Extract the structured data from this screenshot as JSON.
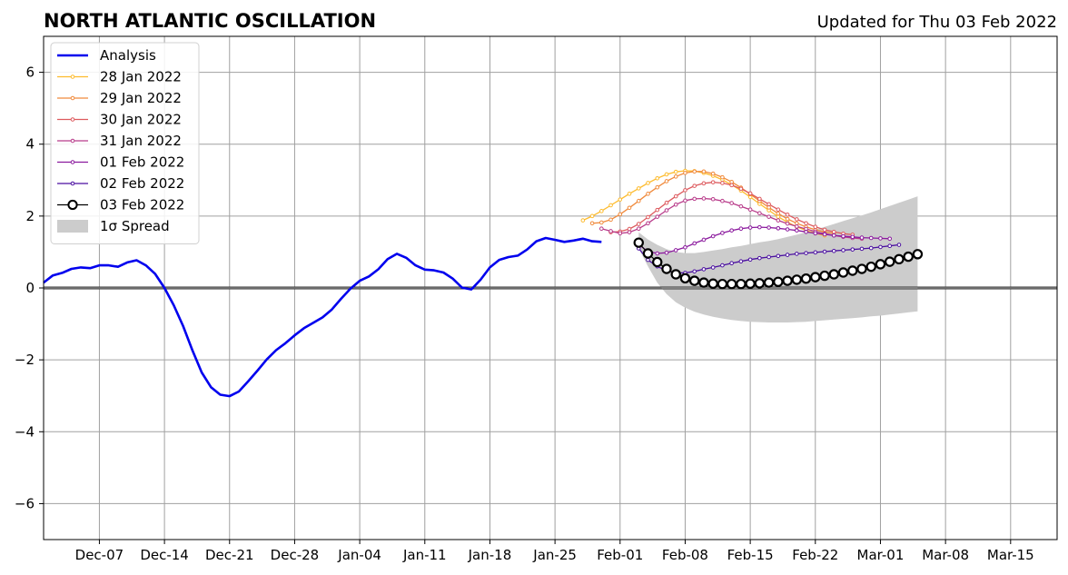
{
  "chart_data": {
    "type": "line",
    "title": "NORTH ATLANTIC OSCILLATION",
    "subtitle": "Updated for Thu 03 Feb 2022",
    "xlabel": "",
    "ylabel": "",
    "xlim": [
      "2021-12-01",
      "2022-03-20"
    ],
    "ylim": [
      -7,
      7
    ],
    "grid": true,
    "legend_position": "top-left",
    "x_ticks": [
      {
        "date": "2021-12-07",
        "label": "Dec-07"
      },
      {
        "date": "2021-12-14",
        "label": "Dec-14"
      },
      {
        "date": "2021-12-21",
        "label": "Dec-21"
      },
      {
        "date": "2021-12-28",
        "label": "Dec-28"
      },
      {
        "date": "2022-01-04",
        "label": "Jan-04"
      },
      {
        "date": "2022-01-11",
        "label": "Jan-11"
      },
      {
        "date": "2022-01-18",
        "label": "Jan-18"
      },
      {
        "date": "2022-01-25",
        "label": "Jan-25"
      },
      {
        "date": "2022-02-01",
        "label": "Feb-01"
      },
      {
        "date": "2022-02-08",
        "label": "Feb-08"
      },
      {
        "date": "2022-02-15",
        "label": "Feb-15"
      },
      {
        "date": "2022-02-22",
        "label": "Feb-22"
      },
      {
        "date": "2022-03-01",
        "label": "Mar-01"
      },
      {
        "date": "2022-03-08",
        "label": "Mar-08"
      },
      {
        "date": "2022-03-15",
        "label": "Mar-15"
      }
    ],
    "y_ticks": [
      {
        "value": 6,
        "label": "6"
      },
      {
        "value": 4,
        "label": "4"
      },
      {
        "value": 2,
        "label": "2"
      },
      {
        "value": 0,
        "label": "0"
      },
      {
        "value": -2,
        "label": "−2"
      },
      {
        "value": -4,
        "label": "−4"
      },
      {
        "value": -6,
        "label": "−6"
      }
    ],
    "legend": {
      "analysis": "Analysis",
      "spread": "1σ Spread"
    },
    "analysis": {
      "name": "Analysis",
      "color": "#0000ee",
      "start": "2021-12-01",
      "values": [
        0.15,
        0.35,
        0.42,
        0.53,
        0.57,
        0.55,
        0.63,
        0.63,
        0.59,
        0.71,
        0.77,
        0.63,
        0.39,
        0.0,
        -0.48,
        -1.06,
        -1.73,
        -2.35,
        -2.76,
        -2.97,
        -3.01,
        -2.88,
        -2.6,
        -2.3,
        -1.99,
        -1.73,
        -1.54,
        -1.32,
        -1.12,
        -0.97,
        -0.82,
        -0.6,
        -0.3,
        -0.02,
        0.2,
        0.32,
        0.52,
        0.8,
        0.95,
        0.84,
        0.63,
        0.51,
        0.49,
        0.43,
        0.26,
        0.01,
        -0.04,
        0.23,
        0.57,
        0.78,
        0.86,
        0.9,
        1.07,
        1.3,
        1.39,
        1.34,
        1.28,
        1.32,
        1.37,
        1.3,
        1.28
      ]
    },
    "spread": {
      "name": "1σ Spread",
      "color": "#cccccc",
      "dates": [
        "2022-02-03",
        "2022-02-04",
        "2022-02-05",
        "2022-02-06",
        "2022-02-07",
        "2022-02-08",
        "2022-02-09",
        "2022-02-10",
        "2022-02-11",
        "2022-02-12",
        "2022-02-13",
        "2022-02-14",
        "2022-02-15",
        "2022-02-16",
        "2022-02-17",
        "2022-02-18",
        "2022-02-19",
        "2022-02-20",
        "2022-02-21",
        "2022-02-22",
        "2022-02-23",
        "2022-02-24",
        "2022-02-25",
        "2022-02-26",
        "2022-02-27",
        "2022-02-28",
        "2022-03-01",
        "2022-03-02",
        "2022-03-03",
        "2022-03-04",
        "2022-03-05"
      ],
      "upper": [
        1.55,
        1.35,
        1.2,
        1.08,
        1.0,
        0.97,
        0.97,
        1.0,
        1.04,
        1.08,
        1.13,
        1.17,
        1.22,
        1.27,
        1.31,
        1.36,
        1.42,
        1.48,
        1.55,
        1.62,
        1.7,
        1.78,
        1.86,
        1.94,
        2.02,
        2.1,
        2.19,
        2.28,
        2.37,
        2.46,
        2.55
      ],
      "lower": [
        1.1,
        0.6,
        0.15,
        -0.17,
        -0.4,
        -0.55,
        -0.66,
        -0.74,
        -0.8,
        -0.85,
        -0.89,
        -0.92,
        -0.94,
        -0.95,
        -0.96,
        -0.96,
        -0.96,
        -0.95,
        -0.94,
        -0.92,
        -0.9,
        -0.88,
        -0.86,
        -0.84,
        -0.82,
        -0.79,
        -0.77,
        -0.74,
        -0.71,
        -0.68,
        -0.65
      ]
    },
    "series": [
      {
        "name": "28 Jan 2022",
        "color": "#fdbb2d",
        "start": "2022-01-28",
        "values": [
          1.88,
          2.0,
          2.14,
          2.3,
          2.46,
          2.62,
          2.77,
          2.92,
          3.05,
          3.16,
          3.23,
          3.26,
          3.25,
          3.2,
          3.12,
          3.01,
          2.87,
          2.71,
          2.53,
          2.34,
          2.16,
          1.98,
          1.83,
          1.7,
          1.6,
          1.52,
          1.46
        ]
      },
      {
        "name": "29 Jan 2022",
        "color": "#f08a3c",
        "start": "2022-01-29",
        "values": [
          1.8,
          1.82,
          1.9,
          2.05,
          2.23,
          2.42,
          2.62,
          2.8,
          2.97,
          3.1,
          3.2,
          3.24,
          3.24,
          3.18,
          3.08,
          2.95,
          2.79,
          2.61,
          2.42,
          2.24,
          2.07,
          1.92,
          1.8,
          1.7,
          1.62,
          1.56,
          1.52
        ]
      },
      {
        "name": "30 Jan 2022",
        "color": "#dd5a5e",
        "start": "2022-01-31",
        "values": [
          1.55,
          1.57,
          1.64,
          1.78,
          1.97,
          2.17,
          2.37,
          2.55,
          2.72,
          2.84,
          2.91,
          2.94,
          2.92,
          2.86,
          2.76,
          2.63,
          2.48,
          2.33,
          2.18,
          2.04,
          1.91,
          1.8,
          1.7,
          1.62,
          1.56,
          1.51,
          1.48
        ]
      },
      {
        "name": "31 Jan 2022",
        "color": "#b83b8a",
        "start": "2022-01-30",
        "values": [
          1.65,
          1.58,
          1.52,
          1.55,
          1.65,
          1.8,
          1.98,
          2.16,
          2.32,
          2.43,
          2.48,
          2.49,
          2.47,
          2.42,
          2.36,
          2.27,
          2.18,
          2.08,
          1.98,
          1.88,
          1.79,
          1.71,
          1.64,
          1.57,
          1.51,
          1.46,
          1.42,
          1.39,
          1.37
        ]
      },
      {
        "name": "01 Feb 2022",
        "color": "#8b1a9e",
        "start": "2022-02-03",
        "values": [
          1.2,
          1.02,
          0.96,
          0.98,
          1.05,
          1.13,
          1.24,
          1.34,
          1.44,
          1.53,
          1.6,
          1.65,
          1.68,
          1.69,
          1.68,
          1.66,
          1.63,
          1.6,
          1.56,
          1.52,
          1.49,
          1.46,
          1.44,
          1.42,
          1.4,
          1.39,
          1.38,
          1.37
        ]
      },
      {
        "name": "02 Feb 2022",
        "color": "#4a0fa0",
        "start": "2022-02-03",
        "values": [
          1.1,
          0.78,
          0.6,
          0.48,
          0.42,
          0.42,
          0.46,
          0.52,
          0.57,
          0.63,
          0.69,
          0.74,
          0.79,
          0.83,
          0.86,
          0.89,
          0.92,
          0.95,
          0.97,
          0.99,
          1.01,
          1.03,
          1.05,
          1.07,
          1.09,
          1.11,
          1.14,
          1.17,
          1.2
        ]
      },
      {
        "name": "03 Feb 2022",
        "color": "#000000",
        "start": "2022-02-03",
        "hollow": true,
        "values": [
          1.26,
          0.96,
          0.72,
          0.53,
          0.38,
          0.27,
          0.2,
          0.15,
          0.12,
          0.11,
          0.11,
          0.11,
          0.12,
          0.13,
          0.15,
          0.17,
          0.2,
          0.23,
          0.26,
          0.3,
          0.34,
          0.38,
          0.43,
          0.48,
          0.53,
          0.59,
          0.66,
          0.73,
          0.8,
          0.87,
          0.94
        ]
      }
    ]
  }
}
